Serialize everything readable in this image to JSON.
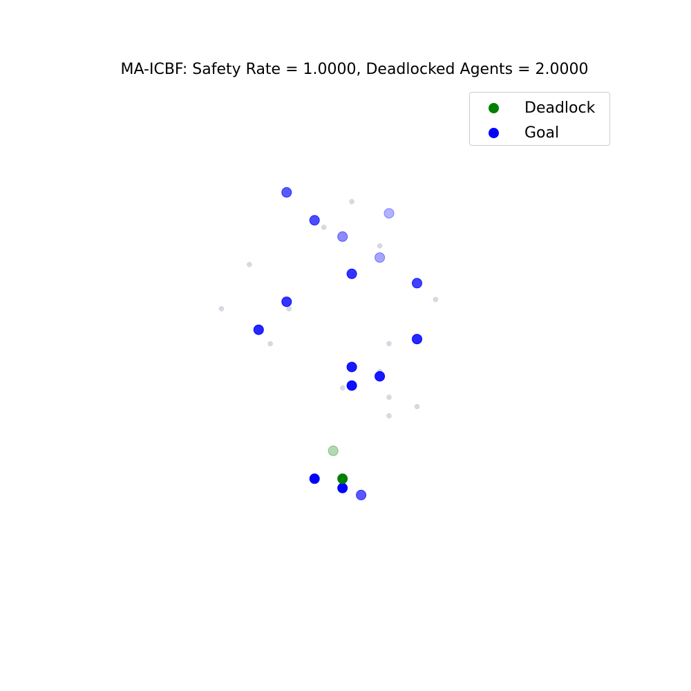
{
  "chart_data": {
    "type": "scatter",
    "title": "MA-ICBF: Safety Rate = 1.0000, Deadlocked Agents = 2.0000",
    "xlabel": "",
    "ylabel": "",
    "xlim": [
      -0.1,
      2.2
    ],
    "ylim": [
      -0.1,
      2.2
    ],
    "grid": false,
    "axes_visible": false,
    "legend": {
      "placement": "top-right",
      "entries": [
        {
          "label": "Deadlock",
          "color": "#008000"
        },
        {
          "label": "Goal",
          "color": "#0000ff"
        }
      ]
    },
    "series": [
      {
        "name": "Deadlock",
        "color": "#008000",
        "points": [
          {
            "x": 1.0,
            "y": 0.5,
            "alpha": 1.0
          },
          {
            "x": 0.96,
            "y": 0.62,
            "alpha": 0.3
          }
        ]
      },
      {
        "name": "Goal",
        "color": "#0000ff",
        "points": [
          {
            "x": 0.76,
            "y": 1.73,
            "alpha": 0.65
          },
          {
            "x": 0.88,
            "y": 1.61,
            "alpha": 0.7
          },
          {
            "x": 1.2,
            "y": 1.64,
            "alpha": 0.3
          },
          {
            "x": 1.0,
            "y": 1.54,
            "alpha": 0.45
          },
          {
            "x": 1.16,
            "y": 1.45,
            "alpha": 0.35
          },
          {
            "x": 1.04,
            "y": 1.38,
            "alpha": 0.8
          },
          {
            "x": 1.32,
            "y": 1.34,
            "alpha": 0.75
          },
          {
            "x": 0.76,
            "y": 1.26,
            "alpha": 0.8
          },
          {
            "x": 0.64,
            "y": 1.14,
            "alpha": 0.85
          },
          {
            "x": 1.32,
            "y": 1.1,
            "alpha": 0.85
          },
          {
            "x": 1.04,
            "y": 0.98,
            "alpha": 0.9
          },
          {
            "x": 1.16,
            "y": 0.94,
            "alpha": 0.9
          },
          {
            "x": 1.04,
            "y": 0.9,
            "alpha": 0.95
          },
          {
            "x": 0.88,
            "y": 0.5,
            "alpha": 1.0
          },
          {
            "x": 1.0,
            "y": 0.46,
            "alpha": 1.0
          },
          {
            "x": 1.08,
            "y": 0.43,
            "alpha": 0.65
          }
        ]
      },
      {
        "name": "",
        "color": "#b4b4c8",
        "points": [
          {
            "x": 1.04,
            "y": 1.69,
            "alpha": 0.5
          },
          {
            "x": 0.92,
            "y": 1.58,
            "alpha": 0.5
          },
          {
            "x": 1.16,
            "y": 1.5,
            "alpha": 0.5
          },
          {
            "x": 0.6,
            "y": 1.42,
            "alpha": 0.5
          },
          {
            "x": 0.77,
            "y": 1.23,
            "alpha": 0.5
          },
          {
            "x": 0.48,
            "y": 1.23,
            "alpha": 0.5
          },
          {
            "x": 1.4,
            "y": 1.27,
            "alpha": 0.5
          },
          {
            "x": 0.69,
            "y": 1.08,
            "alpha": 0.5
          },
          {
            "x": 1.2,
            "y": 1.08,
            "alpha": 0.5
          },
          {
            "x": 1.16,
            "y": 0.96,
            "alpha": 0.5
          },
          {
            "x": 1.0,
            "y": 0.89,
            "alpha": 0.5
          },
          {
            "x": 1.2,
            "y": 0.85,
            "alpha": 0.5
          },
          {
            "x": 1.32,
            "y": 0.81,
            "alpha": 0.5
          },
          {
            "x": 1.2,
            "y": 0.77,
            "alpha": 0.5
          }
        ]
      }
    ]
  }
}
